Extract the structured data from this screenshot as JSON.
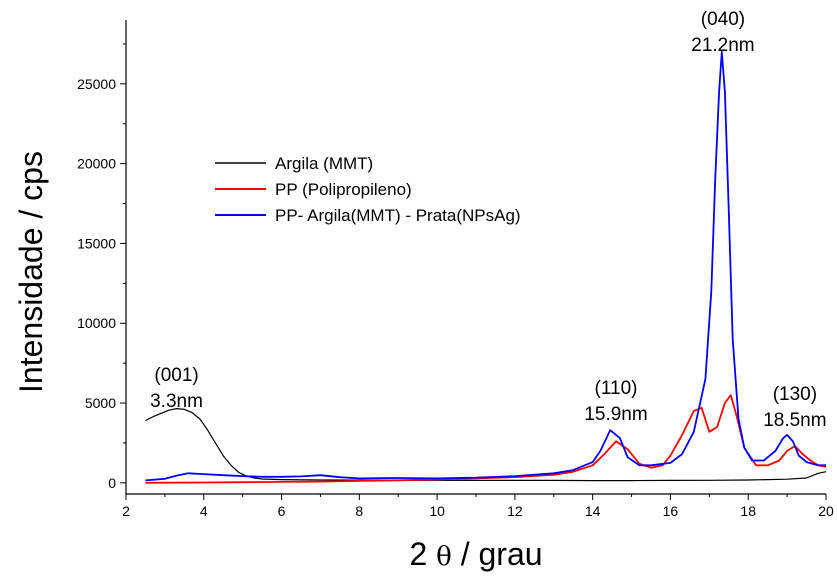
{
  "chart_data": {
    "type": "line",
    "xlabel_prefix": "2 ",
    "xlabel_symbol": "θ",
    "xlabel_suffix": " / grau",
    "ylabel": "Intensidade / cps",
    "xlim": [
      2,
      20
    ],
    "ylim": [
      -700,
      29000
    ],
    "xticks": [
      2,
      4,
      6,
      8,
      10,
      12,
      14,
      16,
      18,
      20
    ],
    "yticks": [
      0,
      5000,
      10000,
      15000,
      20000,
      25000
    ],
    "legend_position": "upper-left-center",
    "series": [
      {
        "name": "Argila (MMT)",
        "color": "#000000",
        "x": [
          2.5,
          2.7,
          2.9,
          3.1,
          3.3,
          3.5,
          3.7,
          3.9,
          4.1,
          4.3,
          4.5,
          4.7,
          4.9,
          5.1,
          5.3,
          5.5,
          6,
          7,
          8,
          9,
          10,
          11,
          12,
          13,
          14,
          15,
          16,
          17,
          18,
          19,
          19.5,
          19.8,
          20
        ],
        "y": [
          3900,
          4150,
          4350,
          4550,
          4650,
          4600,
          4400,
          4000,
          3300,
          2500,
          1700,
          1100,
          650,
          420,
          300,
          240,
          200,
          180,
          170,
          160,
          160,
          150,
          150,
          150,
          140,
          140,
          150,
          160,
          180,
          230,
          300,
          600,
          700
        ]
      },
      {
        "name": "PP (Polipropileno)",
        "color": "#ff0000",
        "x": [
          2.5,
          3,
          4,
          5,
          6,
          7,
          8,
          9,
          10,
          11,
          12,
          13,
          13.5,
          14,
          14.3,
          14.6,
          14.9,
          15.2,
          15.5,
          15.8,
          16,
          16.3,
          16.6,
          16.8,
          17.0,
          17.2,
          17.4,
          17.55,
          17.7,
          17.9,
          18.2,
          18.5,
          18.8,
          19.0,
          19.2,
          19.4,
          19.6,
          19.8,
          20
        ],
        "y": [
          0,
          10,
          20,
          40,
          60,
          80,
          120,
          160,
          220,
          280,
          360,
          500,
          700,
          1100,
          1800,
          2600,
          2100,
          1200,
          950,
          1100,
          1700,
          3000,
          4500,
          4700,
          3200,
          3500,
          5000,
          5500,
          4200,
          2200,
          1100,
          1100,
          1400,
          2000,
          2300,
          1800,
          1400,
          1100,
          1000
        ]
      },
      {
        "name": "PP- Argila(MMT) - Prata(NPsAg)",
        "color": "#0000ff",
        "x": [
          2.5,
          3,
          3.3,
          3.6,
          4,
          4.5,
          5,
          5.5,
          6,
          6.5,
          7,
          7.5,
          8,
          9,
          10,
          11,
          12,
          13,
          13.5,
          14,
          14.2,
          14.45,
          14.7,
          14.9,
          15.2,
          15.5,
          16,
          16.3,
          16.6,
          16.9,
          17.05,
          17.15,
          17.25,
          17.32,
          17.4,
          17.5,
          17.6,
          17.75,
          17.9,
          18.1,
          18.4,
          18.7,
          18.9,
          19.0,
          19.15,
          19.3,
          19.5,
          19.8,
          20
        ],
        "y": [
          150,
          250,
          450,
          600,
          550,
          480,
          420,
          380,
          380,
          400,
          480,
          350,
          280,
          300,
          280,
          320,
          420,
          600,
          800,
          1300,
          2000,
          3300,
          2800,
          1600,
          1100,
          1100,
          1250,
          1800,
          3200,
          6500,
          12000,
          19000,
          24500,
          27000,
          24500,
          17000,
          9000,
          4000,
          2200,
          1400,
          1400,
          2000,
          2800,
          3000,
          2600,
          1700,
          1300,
          1100,
          1100
        ]
      }
    ],
    "annotations": [
      {
        "id": "ann-001",
        "x": 3.3,
        "lines": [
          "(001)",
          "3.3nm"
        ]
      },
      {
        "id": "ann-110",
        "x": 14.6,
        "lines": [
          "(110)",
          "15.9nm"
        ]
      },
      {
        "id": "ann-040",
        "x": 17.35,
        "lines": [
          "(040)",
          "21.2nm"
        ]
      },
      {
        "id": "ann-130",
        "x": 19.2,
        "lines": [
          "(130)",
          "18.5nm"
        ]
      }
    ]
  }
}
